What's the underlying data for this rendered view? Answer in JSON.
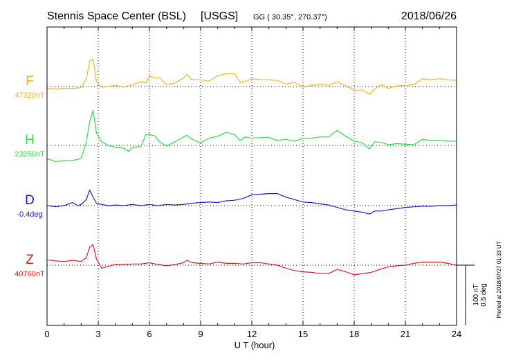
{
  "header": {
    "station": "Stennis Space Center (BSL)",
    "source": "[USGS]",
    "coords": "GG ( 30.35°, 270.37°)",
    "date": "2018/06/26"
  },
  "footer": {
    "plotted": "Plotted at 2018/07/27 01:33 UT"
  },
  "scale_bar": {
    "nt_label": "100 nT",
    "deg_label": "0.5 deg"
  },
  "chart_data": {
    "type": "line",
    "xlabel": "U T (hour)",
    "xlim": [
      0,
      24
    ],
    "xticks": [
      0,
      3,
      6,
      9,
      12,
      15,
      18,
      21,
      24
    ],
    "xtick_labels": [
      "0",
      "3",
      "6",
      "9",
      "12",
      "15",
      "18",
      "21",
      "24"
    ],
    "grid": true,
    "units_per_division": {
      "nT": 100,
      "deg": 0.5
    },
    "series": [
      {
        "name": "F",
        "baseline_label": "47320nT",
        "color": "#f5b01a",
        "offset": 0,
        "x": [
          0,
          0.5,
          1,
          1.5,
          2,
          2.3,
          2.5,
          2.7,
          2.9,
          3.2,
          3.6,
          4,
          4.5,
          5,
          5.5,
          5.8,
          6,
          6.3,
          6.6,
          7,
          7.5,
          8,
          8.2,
          8.5,
          9,
          9.5,
          10,
          10.5,
          11,
          11.3,
          11.6,
          12,
          12.5,
          13,
          13.5,
          14,
          14.5,
          15,
          15.5,
          16,
          16.5,
          17,
          17.5,
          18,
          18.5,
          18.9,
          19.2,
          19.6,
          20,
          20.5,
          21,
          21.5,
          22,
          22.5,
          23,
          23.5,
          24
        ],
        "y": [
          -3,
          -4,
          -3,
          -3,
          -2,
          12,
          42,
          45,
          8,
          -1,
          0,
          2,
          -1,
          3,
          8,
          6,
          18,
          14,
          15,
          3,
          6,
          14,
          20,
          11,
          11,
          9,
          18,
          21,
          21,
          7,
          8,
          13,
          11,
          11,
          10,
          4,
          7,
          -1,
          2,
          3,
          2,
          8,
          1,
          -6,
          -6,
          -13,
          -4,
          3,
          -3,
          1,
          2,
          3,
          13,
          11,
          13,
          11,
          10
        ]
      },
      {
        "name": "H",
        "baseline_label": "23250nT",
        "color": "#22e03a",
        "offset": 0,
        "x": [
          0,
          0.5,
          1,
          1.5,
          2,
          2.3,
          2.5,
          2.7,
          2.9,
          3.2,
          3.6,
          4,
          4.5,
          4.8,
          5,
          5.5,
          5.8,
          6,
          6.3,
          6.6,
          7,
          7.5,
          8,
          8.2,
          8.5,
          9,
          9.5,
          10,
          10.5,
          11,
          11.3,
          11.6,
          12,
          12.5,
          13,
          13.5,
          14,
          14.5,
          15,
          15.5,
          16,
          16.5,
          17,
          17.5,
          18,
          18.5,
          18.9,
          19.2,
          19.6,
          20,
          20.5,
          21,
          21.5,
          22,
          22.5,
          23,
          23.5,
          24
        ],
        "y": [
          -22,
          -27,
          -25,
          -25,
          -22,
          5,
          40,
          58,
          20,
          6,
          0,
          -3,
          -5,
          -10,
          -3,
          -2,
          18,
          18,
          16,
          6,
          -1,
          6,
          14,
          17,
          10,
          4,
          12,
          15,
          22,
          18,
          8,
          14,
          12,
          13,
          13,
          8,
          10,
          7,
          12,
          12,
          14,
          14,
          25,
          15,
          7,
          4,
          -6,
          6,
          5,
          1,
          3,
          2,
          1,
          10,
          8,
          8,
          7,
          7
        ]
      },
      {
        "name": "D",
        "baseline_label": "-0.4deg",
        "color": "#1a1ad6",
        "offset": 0,
        "x": [
          0,
          0.5,
          1,
          1.5,
          1.8,
          2,
          2.3,
          2.5,
          2.7,
          2.9,
          3.2,
          3.6,
          4,
          4.5,
          5,
          5.5,
          6,
          6.5,
          7,
          7.5,
          8,
          8.5,
          9,
          9.5,
          10,
          10.5,
          11,
          11.5,
          12,
          12.5,
          13,
          13.5,
          14,
          14.5,
          15,
          15.5,
          16,
          16.5,
          17,
          17.5,
          18,
          18.5,
          18.9,
          19.2,
          19.6,
          20,
          20.5,
          21,
          21.5,
          22,
          22.5,
          23,
          23.5,
          24
        ],
        "y": [
          0,
          -2,
          0,
          5,
          0,
          2,
          10,
          26,
          14,
          4,
          2,
          0,
          1,
          0,
          2,
          0,
          2,
          0,
          2,
          1,
          2,
          4,
          5,
          6,
          5,
          8,
          9,
          12,
          18,
          19,
          20,
          20,
          14,
          10,
          6,
          5,
          3,
          1,
          -3,
          -7,
          -9,
          -11,
          -14,
          -9,
          -9,
          -7,
          -5,
          -3,
          -2,
          -1,
          -1,
          0,
          0,
          1
        ]
      },
      {
        "name": "Z",
        "baseline_label": "40760nT",
        "color": "#e01a1a",
        "offset": 0,
        "x": [
          0,
          0.5,
          1,
          1.5,
          2,
          2.3,
          2.5,
          2.7,
          2.9,
          3.2,
          3.6,
          4,
          4.5,
          5,
          5.5,
          6,
          6.5,
          7,
          7.5,
          8,
          8.2,
          8.5,
          9,
          9.5,
          10,
          10.5,
          11,
          11.5,
          12,
          12.5,
          13,
          13.5,
          14,
          14.5,
          15,
          15.5,
          16,
          16.5,
          17,
          17.5,
          18,
          18.5,
          19,
          19.5,
          20,
          20.5,
          21,
          21.5,
          22,
          22.5,
          23,
          23.5,
          24
        ],
        "y": [
          9,
          7,
          6,
          8,
          6,
          12,
          30,
          34,
          10,
          -5,
          -2,
          1,
          1,
          2,
          2,
          4,
          1,
          -1,
          1,
          4,
          8,
          4,
          3,
          2,
          5,
          3,
          3,
          2,
          4,
          4,
          2,
          0,
          -5,
          -9,
          -11,
          -12,
          -14,
          -14,
          -7,
          -11,
          -16,
          -14,
          -12,
          -7,
          -3,
          -1,
          0,
          3,
          5,
          5,
          5,
          3,
          0
        ]
      }
    ]
  }
}
